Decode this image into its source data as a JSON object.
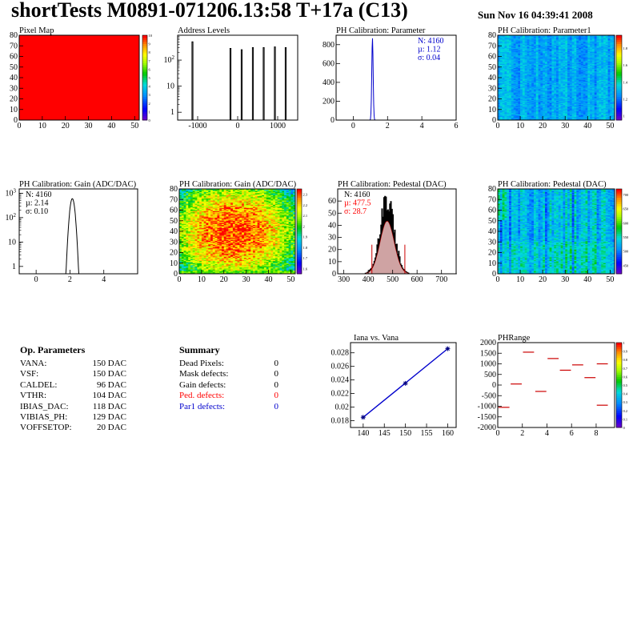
{
  "header": {
    "title": "shortTests M0891-071206.13:58 T+17a (C13)",
    "date": "Sun Nov 16 04:39:41 2008"
  },
  "op_params": {
    "heading": "Op. Parameters",
    "items": [
      {
        "label": "VANA:",
        "value": "150 DAC"
      },
      {
        "label": "VSF:",
        "value": "150 DAC"
      },
      {
        "label": "CALDEL:",
        "value": "96 DAC"
      },
      {
        "label": "VTHR:",
        "value": "104 DAC"
      },
      {
        "label": "IBIAS_DAC:",
        "value": "118 DAC"
      },
      {
        "label": "VIBIAS_PH:",
        "value": "129 DAC"
      },
      {
        "label": "VOFFSETOP:",
        "value": "20 DAC"
      }
    ]
  },
  "summary": {
    "heading": "Summary",
    "items": [
      {
        "label": "Dead Pixels:",
        "value": "0",
        "color": "#000000"
      },
      {
        "label": "Mask defects:",
        "value": "0",
        "color": "#000000"
      },
      {
        "label": "Gain defects:",
        "value": "0",
        "color": "#000000"
      },
      {
        "label": "Ped. defects:",
        "value": "0",
        "color": "#ff0000"
      },
      {
        "label": "Par1 defects:",
        "value": "0",
        "color": "#0000cc"
      }
    ]
  },
  "chart_data": [
    {
      "id": "pixmap",
      "type": "heatmap",
      "title": "Pixel Map",
      "xlim": [
        0,
        52
      ],
      "ylim": [
        0,
        80
      ],
      "xticks": [
        "0",
        "10",
        "20",
        "30",
        "40",
        "50"
      ],
      "yticks": [
        "0",
        "10",
        "20",
        "30",
        "40",
        "50",
        "60",
        "70",
        "80"
      ],
      "zticks": [
        "0",
        "1",
        "2",
        "3",
        "4",
        "5",
        "6",
        "7",
        "8",
        "9",
        "10"
      ],
      "zlim": [
        0,
        10
      ],
      "value": 10,
      "fill": "#ff0000"
    },
    {
      "id": "addr",
      "type": "line",
      "title": "Address Levels",
      "log_y": true,
      "xlim": [
        -1500,
        1500
      ],
      "ylim": [
        0.5,
        900
      ],
      "xticks": [
        "-1000",
        "0",
        "1000"
      ],
      "peaks": [
        [
          -1130,
          500
        ],
        [
          -180,
          280
        ],
        [
          100,
          250
        ],
        [
          380,
          300
        ],
        [
          650,
          300
        ],
        [
          930,
          320
        ],
        [
          1200,
          300
        ]
      ]
    },
    {
      "id": "param",
      "type": "line",
      "title": "PH Calibration: Parameter",
      "xlim": [
        -1,
        6
      ],
      "ylim": [
        0,
        900
      ],
      "xticks": [
        "0",
        "2",
        "4",
        "6"
      ],
      "yticks": [
        "0",
        "200",
        "400",
        "600",
        "800"
      ],
      "stats": [
        {
          "text": "N: 4160",
          "color": "#0000cc"
        },
        {
          "text": "µ: 1.12",
          "color": "#0000cc"
        },
        {
          "text": "σ: 0.04",
          "color": "#0000cc"
        }
      ],
      "mean": 1.12,
      "sigma": 0.04,
      "peak": 870,
      "color": "#0000cc"
    },
    {
      "id": "param1",
      "type": "heatmap",
      "title": "PH Calibration: Parameter1",
      "xlim": [
        0,
        52
      ],
      "ylim": [
        0,
        80
      ],
      "xticks": [
        "0",
        "10",
        "20",
        "30",
        "40",
        "50"
      ],
      "yticks": [
        "0",
        "10",
        "20",
        "30",
        "40",
        "50",
        "60",
        "70",
        "80"
      ],
      "zticks": [
        "1",
        "1.2",
        "1.4",
        "1.6",
        "1.8"
      ],
      "zlim": [
        0.95,
        1.95
      ]
    },
    {
      "id": "gain",
      "type": "line",
      "title": "PH Calibration: Gain (ADC/DAC)",
      "log_y": true,
      "xlim": [
        -1,
        6
      ],
      "ylim": [
        0.5,
        1500
      ],
      "xticks": [
        "0",
        "2",
        "4"
      ],
      "stats": [
        {
          "text": "N: 4160",
          "color": "#000000"
        },
        {
          "text": "µ: 2.14",
          "color": "#000000"
        },
        {
          "text": "σ: 0.10",
          "color": "#000000"
        }
      ],
      "mean": 2.14,
      "sigma": 0.1,
      "peak": 600
    },
    {
      "id": "gainmap",
      "type": "heatmap",
      "title": "PH Calibration: Gain (ADC/DAC)",
      "xlim": [
        0,
        52
      ],
      "ylim": [
        0,
        80
      ],
      "xticks": [
        "0",
        "10",
        "20",
        "30",
        "40",
        "50"
      ],
      "yticks": [
        "0",
        "10",
        "20",
        "30",
        "40",
        "50",
        "60",
        "70",
        "80"
      ],
      "zticks": [
        "1.6",
        "1.7",
        "1.8",
        "1.9",
        "2",
        "2.1",
        "2.2",
        "2.3"
      ],
      "zlim": [
        1.55,
        2.35
      ]
    },
    {
      "id": "ped",
      "type": "line",
      "title": "PH Calibration: Pedestal (DAC)",
      "xlim": [
        275,
        760
      ],
      "ylim": [
        0,
        70
      ],
      "xticks": [
        "300",
        "400",
        "500",
        "600",
        "700"
      ],
      "yticks": [
        "0",
        "10",
        "20",
        "30",
        "40",
        "50",
        "60"
      ],
      "stats": [
        {
          "text": "N: 4160",
          "color": "#000000"
        },
        {
          "text": "µ: 477.5",
          "color": "#ff0000"
        },
        {
          "text": "σ: 28.7",
          "color": "#ff0000"
        }
      ],
      "mean": 477.5,
      "sigma": 28.7,
      "peak": 62,
      "cut_lines": [
        415,
        550
      ],
      "cut_height": 24
    },
    {
      "id": "pedmap",
      "type": "heatmap",
      "title": "PH Calibration: Pedestal (DAC)",
      "xlim": [
        0,
        52
      ],
      "ylim": [
        0,
        80
      ],
      "xticks": [
        "0",
        "10",
        "20",
        "30",
        "40",
        "50"
      ],
      "yticks": [
        "0",
        "10",
        "20",
        "30",
        "40",
        "50",
        "60",
        "70",
        "80"
      ],
      "zticks": [
        "450",
        "500",
        "550",
        "600",
        "650",
        "700"
      ],
      "zlim": [
        420,
        720
      ]
    },
    {
      "id": "iana",
      "type": "line",
      "title": "Iana vs. Vana",
      "xlim": [
        137,
        162
      ],
      "ylim": [
        0.017,
        0.0295
      ],
      "xticks": [
        "140",
        "145",
        "150",
        "155",
        "160"
      ],
      "yticks": [
        "0.018",
        "0.02",
        "0.022",
        "0.024",
        "0.026",
        "0.028"
      ],
      "x": [
        140,
        150,
        160
      ],
      "y": [
        0.0185,
        0.0235,
        0.0286
      ]
    },
    {
      "id": "phrange",
      "type": "scatter",
      "title": "PHRange",
      "xlim": [
        0,
        9.5
      ],
      "ylim": [
        -2000,
        2000
      ],
      "xticks": [
        "0",
        "2",
        "4",
        "6",
        "8"
      ],
      "yticks": [
        "-2000",
        "-1500",
        "-1000",
        "-500",
        "0",
        "500",
        "1000",
        "1500",
        "2000"
      ],
      "zticks": [
        "0",
        "0.1",
        "0.2",
        "0.3",
        "0.4",
        "0.5",
        "0.6",
        "0.7",
        "0.8",
        "0.9",
        "1"
      ],
      "segments": [
        [
          0,
          1,
          -1050
        ],
        [
          1,
          2,
          50
        ],
        [
          2,
          3,
          1550
        ],
        [
          3,
          4,
          -300
        ],
        [
          4,
          5,
          1250
        ],
        [
          5,
          6,
          700
        ],
        [
          6,
          7,
          950
        ],
        [
          7,
          8,
          350
        ],
        [
          8,
          9,
          1000
        ],
        [
          8,
          9,
          -950
        ]
      ]
    }
  ]
}
